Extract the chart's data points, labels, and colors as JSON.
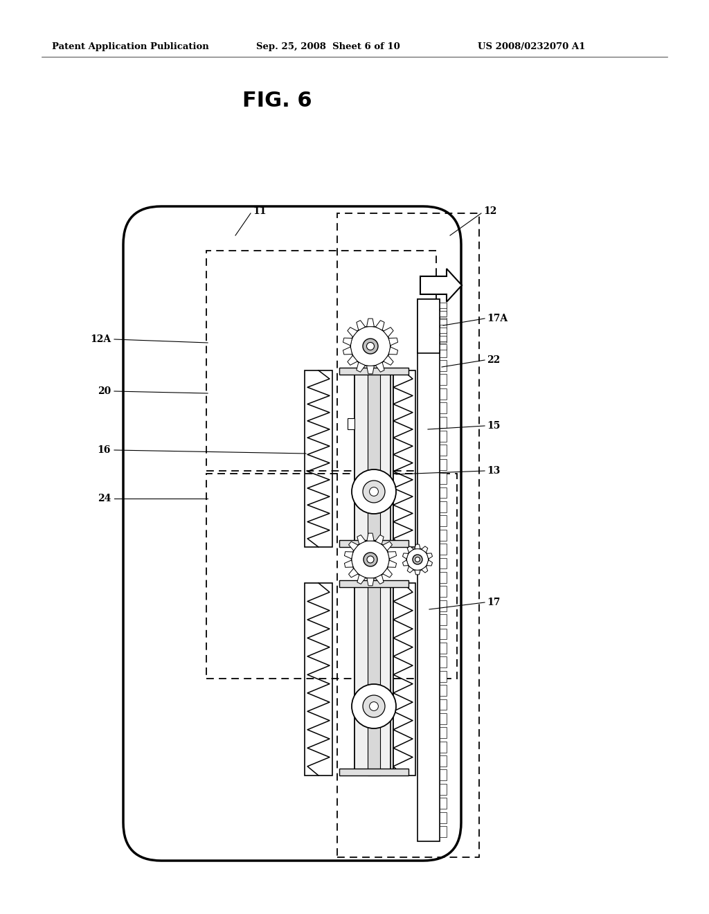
{
  "bg_color": "#ffffff",
  "lc": "#000000",
  "header_text": "Patent Application Publication",
  "header_date": "Sep. 25, 2008  Sheet 6 of 10",
  "header_patent": "US 2008/0232070 A1",
  "figure_label": "FIG. 6"
}
